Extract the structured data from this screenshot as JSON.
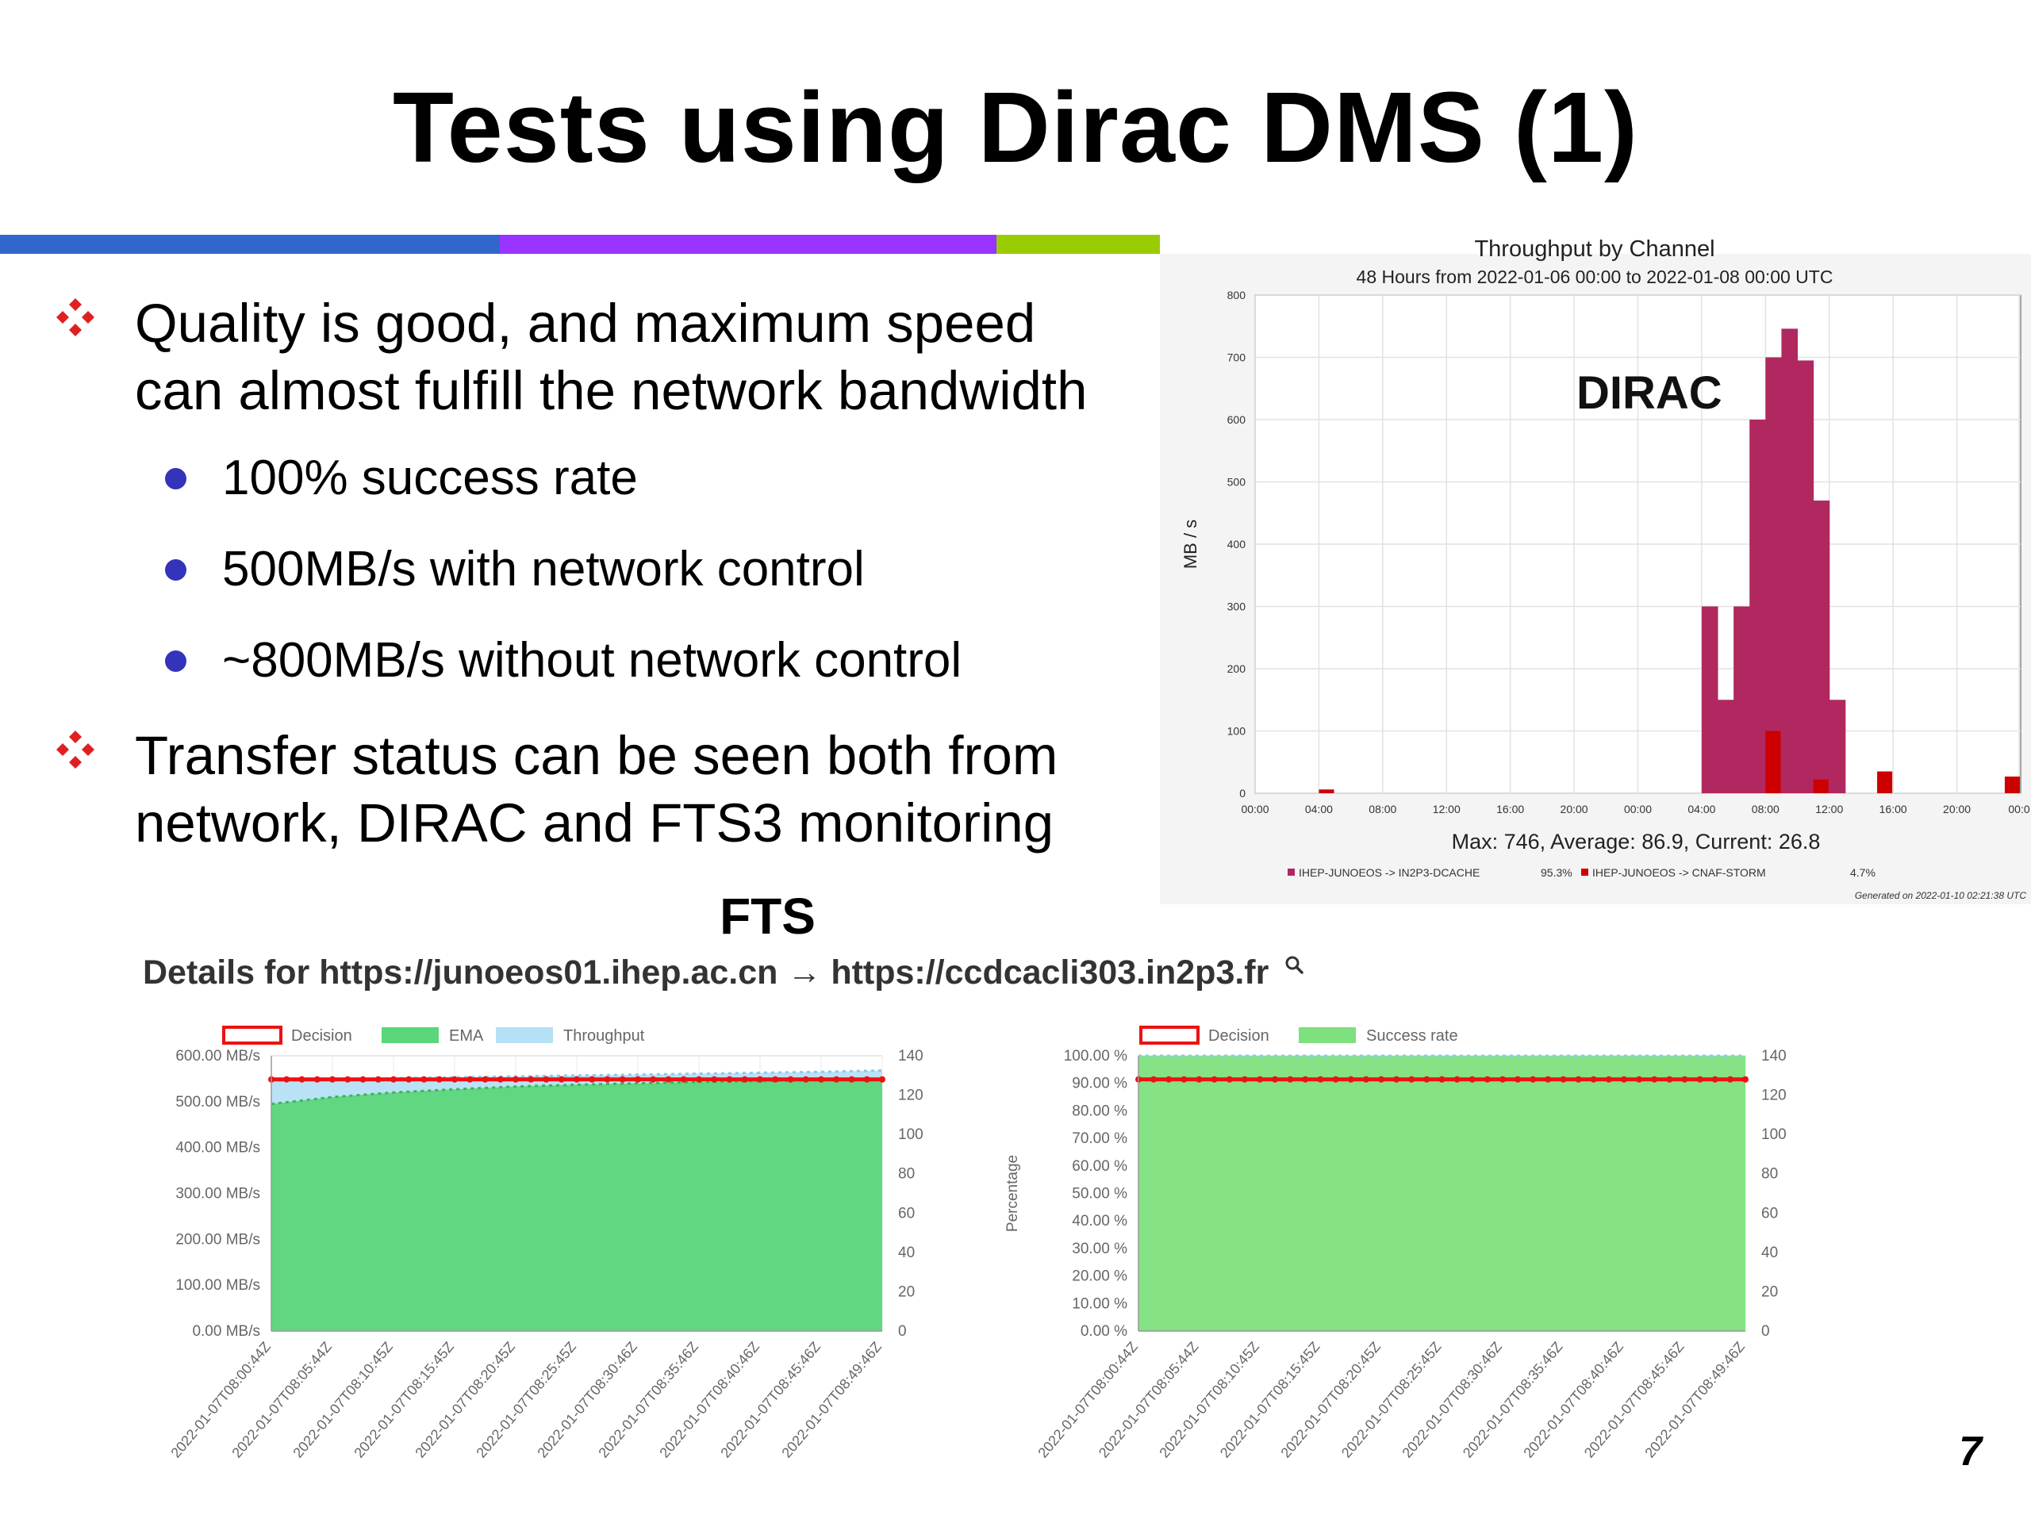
{
  "slide": {
    "title": "Tests using Dirac DMS (1)",
    "page_number": "7",
    "stripe_colors": [
      "#3366cc",
      "#9933ff",
      "#99cc00"
    ],
    "bullets": [
      {
        "text_lines": [
          "Quality is good, and maximum speed",
          "can almost fulfill the network bandwidth"
        ],
        "sub": [
          "100% success rate",
          "500MB/s with network control",
          "~800MB/s without network control"
        ]
      },
      {
        "text_lines": [
          "Transfer status can be seen both from",
          "network, DIRAC and FTS3 monitoring"
        ],
        "sub": []
      }
    ],
    "fts_label": "FTS",
    "fts_details": "Details for https://junoeos01.ihep.ac.cn → https://ccdcacli303.in2p3.fr",
    "fts_details_icon": "magnifier-icon",
    "bullet_icon": "four-diamond-icon",
    "bullet_color": "#e02020",
    "subbullet_color": "#3333bb"
  },
  "chart_data": [
    {
      "type": "bar",
      "title": "Throughput by Channel",
      "subtitle": "48 Hours from 2022-01-06 00:00 to 2022-01-08 00:00 UTC",
      "annotation": "DIRAC",
      "ylabel": "MB / s",
      "ylim": [
        0,
        800
      ],
      "yticks": [
        "0",
        "100",
        "200",
        "300",
        "400",
        "500",
        "600",
        "700",
        "800"
      ],
      "xlim_hours": [
        0,
        48
      ],
      "xticks": [
        "00:00",
        "04:00",
        "08:00",
        "12:00",
        "16:00",
        "20:00",
        "00:00",
        "04:00",
        "08:00",
        "12:00",
        "16:00",
        "20:00",
        "00:0"
      ],
      "stats": "Max: 746, Average: 86.9, Current: 26.8",
      "generated": "Generated on 2022-01-10 02:21:38 UTC",
      "grid": true,
      "legend_position": "bottom",
      "series": [
        {
          "name": "IHEP-JUNOEOS -> IN2P3-DCACHE",
          "share": "95.3%",
          "color": "#b0285f",
          "bars": [
            [
              28,
              300
            ],
            [
              29,
              150
            ],
            [
              30,
              300
            ],
            [
              31,
              600
            ],
            [
              32,
              700
            ],
            [
              33,
              746
            ],
            [
              34,
              695
            ],
            [
              35,
              470
            ],
            [
              36,
              150
            ]
          ]
        },
        {
          "name": "IHEP-JUNOEOS -> CNAF-STORM",
          "share": "4.7%",
          "color": "#cc0000",
          "bars": [
            [
              4,
              6
            ],
            [
              32,
              100
            ],
            [
              35,
              22
            ],
            [
              39,
              35
            ],
            [
              47,
              26.8
            ]
          ]
        }
      ]
    },
    {
      "type": "area",
      "ylim": [
        0,
        600
      ],
      "yticks": [
        "0.00 MB/s",
        "100.00 MB/s",
        "200.00 MB/s",
        "300.00 MB/s",
        "400.00 MB/s",
        "500.00 MB/s",
        "600.00 MB/s"
      ],
      "y2lim": [
        0,
        140
      ],
      "y2ticks": [
        "0",
        "20",
        "40",
        "60",
        "80",
        "100",
        "120",
        "140"
      ],
      "categories": [
        "2022-01-07T08:00:44Z",
        "2022-01-07T08:05:44Z",
        "2022-01-07T08:10:45Z",
        "2022-01-07T08:15:45Z",
        "2022-01-07T08:20:45Z",
        "2022-01-07T08:25:45Z",
        "2022-01-07T08:30:46Z",
        "2022-01-07T08:35:46Z",
        "2022-01-07T08:40:46Z",
        "2022-01-07T08:45:46Z",
        "2022-01-07T08:49:46Z"
      ],
      "legend_position": "top",
      "series": [
        {
          "name": "Decision",
          "axis": "right",
          "color": "#ee1111",
          "values": [
            128,
            128,
            128,
            128,
            128,
            128,
            128,
            128,
            128,
            128,
            128
          ]
        },
        {
          "name": "EMA",
          "color": "#5cd67a",
          "values": [
            495,
            510,
            520,
            527,
            533,
            537,
            540,
            543,
            545,
            547,
            548
          ]
        },
        {
          "name": "Throughput",
          "color": "#b6e0f5",
          "values": [
            545,
            548,
            551,
            553,
            555,
            557,
            559,
            561,
            563,
            565,
            568
          ]
        }
      ]
    },
    {
      "type": "area",
      "ylim": [
        0,
        100
      ],
      "yticks": [
        "0.00 %",
        "10.00 %",
        "20.00 %",
        "30.00 %",
        "40.00 %",
        "50.00 %",
        "60.00 %",
        "70.00 %",
        "80.00 %",
        "90.00 %",
        "100.00 %"
      ],
      "ylabel": "Percentage",
      "y2lim": [
        0,
        140
      ],
      "y2ticks": [
        "0",
        "20",
        "40",
        "60",
        "80",
        "100",
        "120",
        "140"
      ],
      "categories": [
        "2022-01-07T08:00:44Z",
        "2022-01-07T08:05:44Z",
        "2022-01-07T08:10:45Z",
        "2022-01-07T08:15:45Z",
        "2022-01-07T08:20:45Z",
        "2022-01-07T08:25:45Z",
        "2022-01-07T08:30:46Z",
        "2022-01-07T08:35:46Z",
        "2022-01-07T08:40:46Z",
        "2022-01-07T08:45:46Z",
        "2022-01-07T08:49:46Z"
      ],
      "legend_position": "top",
      "series": [
        {
          "name": "Decision",
          "axis": "right",
          "color": "#ee1111",
          "values": [
            128,
            128,
            128,
            128,
            128,
            128,
            128,
            128,
            128,
            128,
            128
          ]
        },
        {
          "name": "Success rate",
          "color": "#7ee07e",
          "values": [
            100,
            100,
            100,
            100,
            100,
            100,
            100,
            100,
            100,
            100,
            100
          ]
        }
      ]
    }
  ]
}
